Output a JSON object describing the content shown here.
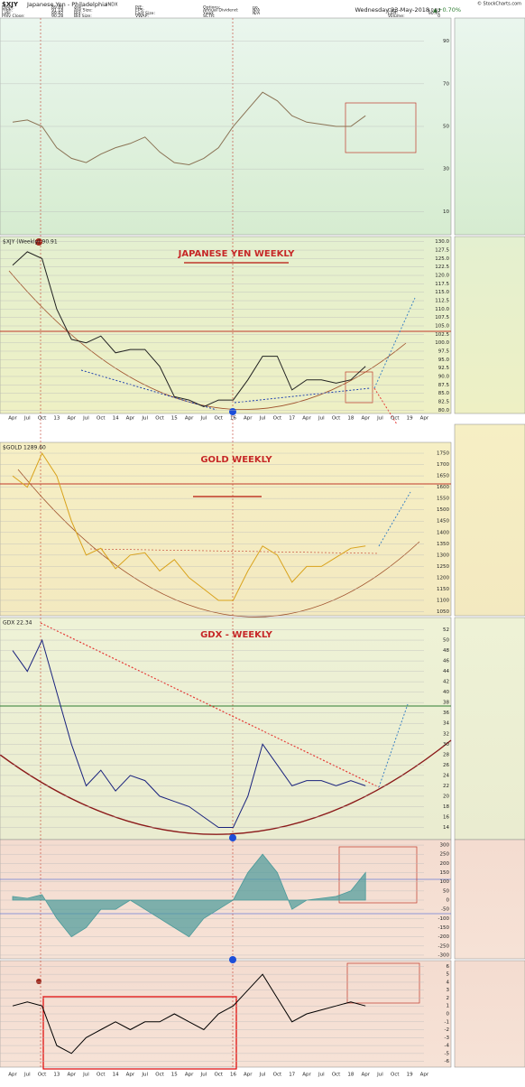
{
  "header": {
    "symbol": "$XJY",
    "name": "Japanese Yen - Philadelphia",
    "exchange": "INDX",
    "credit": "© StockCharts.com",
    "date": "Wednesday 23-May-2018",
    "change_pct": "▲+0.70%",
    "fields": [
      [
        "Open:",
        "89.89"
      ],
      [
        "High:",
        "91.18"
      ],
      [
        "Low:",
        "89.82"
      ],
      [
        "Prev Close:",
        "90.28"
      ],
      [
        "Ask:",
        ""
      ],
      [
        "Ask Size:",
        ""
      ],
      [
        "Bid:",
        ""
      ],
      [
        "Bid Size:",
        ""
      ],
      [
        "P/E:",
        ""
      ],
      [
        "EPS:",
        ""
      ],
      [
        "Last Size:",
        ""
      ],
      [
        "VWAP:",
        ""
      ],
      [
        "Options:",
        "no"
      ],
      [
        "Annual Dividend:",
        "N/A"
      ],
      [
        "Yield:",
        "N/A"
      ],
      [
        "SCTR:",
        ""
      ],
      [
        "Chg:",
        "+0.63"
      ],
      [
        "Last:",
        "90.91"
      ],
      [
        "Volume:",
        "0"
      ]
    ]
  },
  "chart_data": [
    {
      "type": "line",
      "color": "#8b7355",
      "ylim": [
        0,
        100
      ],
      "yticks": [
        10,
        30,
        50,
        70,
        90
      ],
      "values": [
        52,
        53,
        50,
        40,
        35,
        33,
        37,
        40,
        42,
        45,
        38,
        33,
        32,
        35,
        40,
        50,
        58,
        66,
        62,
        55,
        52,
        51,
        50,
        50,
        55,
        null,
        null,
        null,
        null
      ]
    },
    {
      "type": "line",
      "label": "$XJY (Weekly) 90.91",
      "title": "JAPANESE YEN WEEKLY",
      "color": "#222222",
      "ylim": [
        79,
        131
      ],
      "yticks": [
        {
          "value": 80,
          "label": "80.0"
        },
        {
          "value": 82.5,
          "label": "82.5"
        },
        {
          "value": 85,
          "label": "85.0"
        },
        {
          "value": 87.5,
          "label": "87.5"
        },
        {
          "value": 90,
          "label": "90.0"
        },
        {
          "value": 92.5,
          "label": "92.5"
        },
        {
          "value": 95,
          "label": "95.0"
        },
        {
          "value": 97.5,
          "label": "97.5"
        },
        {
          "value": 100,
          "label": "100.0"
        },
        {
          "value": 102.5,
          "label": "102.5"
        },
        {
          "value": 105,
          "label": "105.0"
        },
        {
          "value": 107.5,
          "label": "107.5"
        },
        {
          "value": 110,
          "label": "110.0"
        },
        {
          "value": 112.5,
          "label": "112.5"
        },
        {
          "value": 115,
          "label": "115.0"
        },
        {
          "value": 117.5,
          "label": "117.5"
        },
        {
          "value": 120,
          "label": "120.0"
        },
        {
          "value": 122.5,
          "label": "122.5"
        },
        {
          "value": 125,
          "label": "125.0"
        },
        {
          "value": 127.5,
          "label": "127.5"
        },
        {
          "value": 130,
          "label": "130.0"
        }
      ],
      "categories": [
        "Apr",
        "Jul",
        "Oct",
        "13",
        "Apr",
        "Jul",
        "Oct",
        "14",
        "Apr",
        "Jul",
        "Oct",
        "15",
        "Apr",
        "Jul",
        "Oct",
        "16",
        "Apr",
        "Jul",
        "Oct",
        "17",
        "Apr",
        "Jul",
        "Oct",
        "18",
        "Apr",
        "Jul",
        "Oct",
        "19",
        "Apr"
      ],
      "values": [
        123,
        127,
        125,
        110,
        101,
        100,
        102,
        97,
        98,
        98,
        93,
        84,
        83,
        81,
        83,
        83,
        89,
        96,
        96,
        86,
        89,
        89,
        88,
        89,
        93,
        null,
        null,
        null,
        null
      ]
    },
    {
      "type": "line",
      "label": "$GOLD 1289.60",
      "title": "GOLD WEEKLY",
      "color": "#d9a21b",
      "ylim": [
        1040,
        1790
      ],
      "yticks": [
        1050,
        1100,
        1150,
        1200,
        1250,
        1300,
        1350,
        1400,
        1450,
        1500,
        1550,
        1600,
        1650,
        1700,
        1750
      ],
      "values": [
        1650,
        1600,
        1750,
        1650,
        1450,
        1300,
        1330,
        1240,
        1300,
        1310,
        1230,
        1280,
        1200,
        1150,
        1100,
        1100,
        1230,
        1340,
        1300,
        1180,
        1250,
        1250,
        1290,
        1330,
        1340,
        null,
        null,
        null,
        null
      ]
    },
    {
      "type": "line",
      "label": "GDX 22.34",
      "title": "GDX - WEEKLY",
      "color": "#1a237e",
      "ylim": [
        12,
        54
      ],
      "yticks": [
        14,
        16,
        18,
        20,
        22,
        24,
        26,
        28,
        30,
        32,
        34,
        36,
        38,
        40,
        42,
        44,
        46,
        48,
        50,
        52
      ],
      "values": [
        48,
        44,
        50,
        40,
        30,
        22,
        25,
        21,
        24,
        23,
        20,
        19,
        18,
        16,
        14,
        14,
        20,
        30,
        26,
        22,
        23,
        23,
        22,
        23,
        22,
        null,
        null,
        null,
        null
      ]
    },
    {
      "type": "area",
      "color": "#4a9a9a",
      "ylim": [
        -320,
        320
      ],
      "yticks": [
        -300,
        -250,
        -200,
        -150,
        -100,
        -50,
        0,
        50,
        100,
        150,
        200,
        250,
        300
      ],
      "values": [
        20,
        10,
        30,
        -100,
        -200,
        -150,
        -50,
        -50,
        0,
        -50,
        -100,
        -150,
        -200,
        -100,
        -50,
        0,
        150,
        250,
        150,
        -50,
        0,
        10,
        20,
        50,
        150,
        null,
        null,
        null,
        null
      ]
    },
    {
      "type": "line",
      "color": "#000000",
      "ylim": [
        -6.5,
        6.5
      ],
      "yticks": [
        -6,
        -5,
        -4,
        -3,
        -2,
        -1,
        0,
        1,
        2,
        3,
        4,
        5,
        6
      ],
      "categories": [
        "Apr",
        "Jul",
        "Oct",
        "13",
        "Apr",
        "Jul",
        "Oct",
        "14",
        "Apr",
        "Jul",
        "Oct",
        "15",
        "Apr",
        "Jul",
        "Oct",
        "16",
        "Apr",
        "Jul",
        "Oct",
        "17",
        "Apr",
        "Jul",
        "Oct",
        "18",
        "Apr",
        "Jul",
        "Oct",
        "19",
        "Apr"
      ],
      "values": [
        1,
        1.5,
        1,
        -4,
        -5,
        -3,
        -2,
        -1,
        -2,
        -1,
        -1,
        0,
        -1,
        -2,
        0,
        1,
        3,
        5,
        2,
        -1,
        0,
        0.5,
        1,
        1.5,
        1,
        null,
        null,
        null,
        null
      ]
    }
  ]
}
